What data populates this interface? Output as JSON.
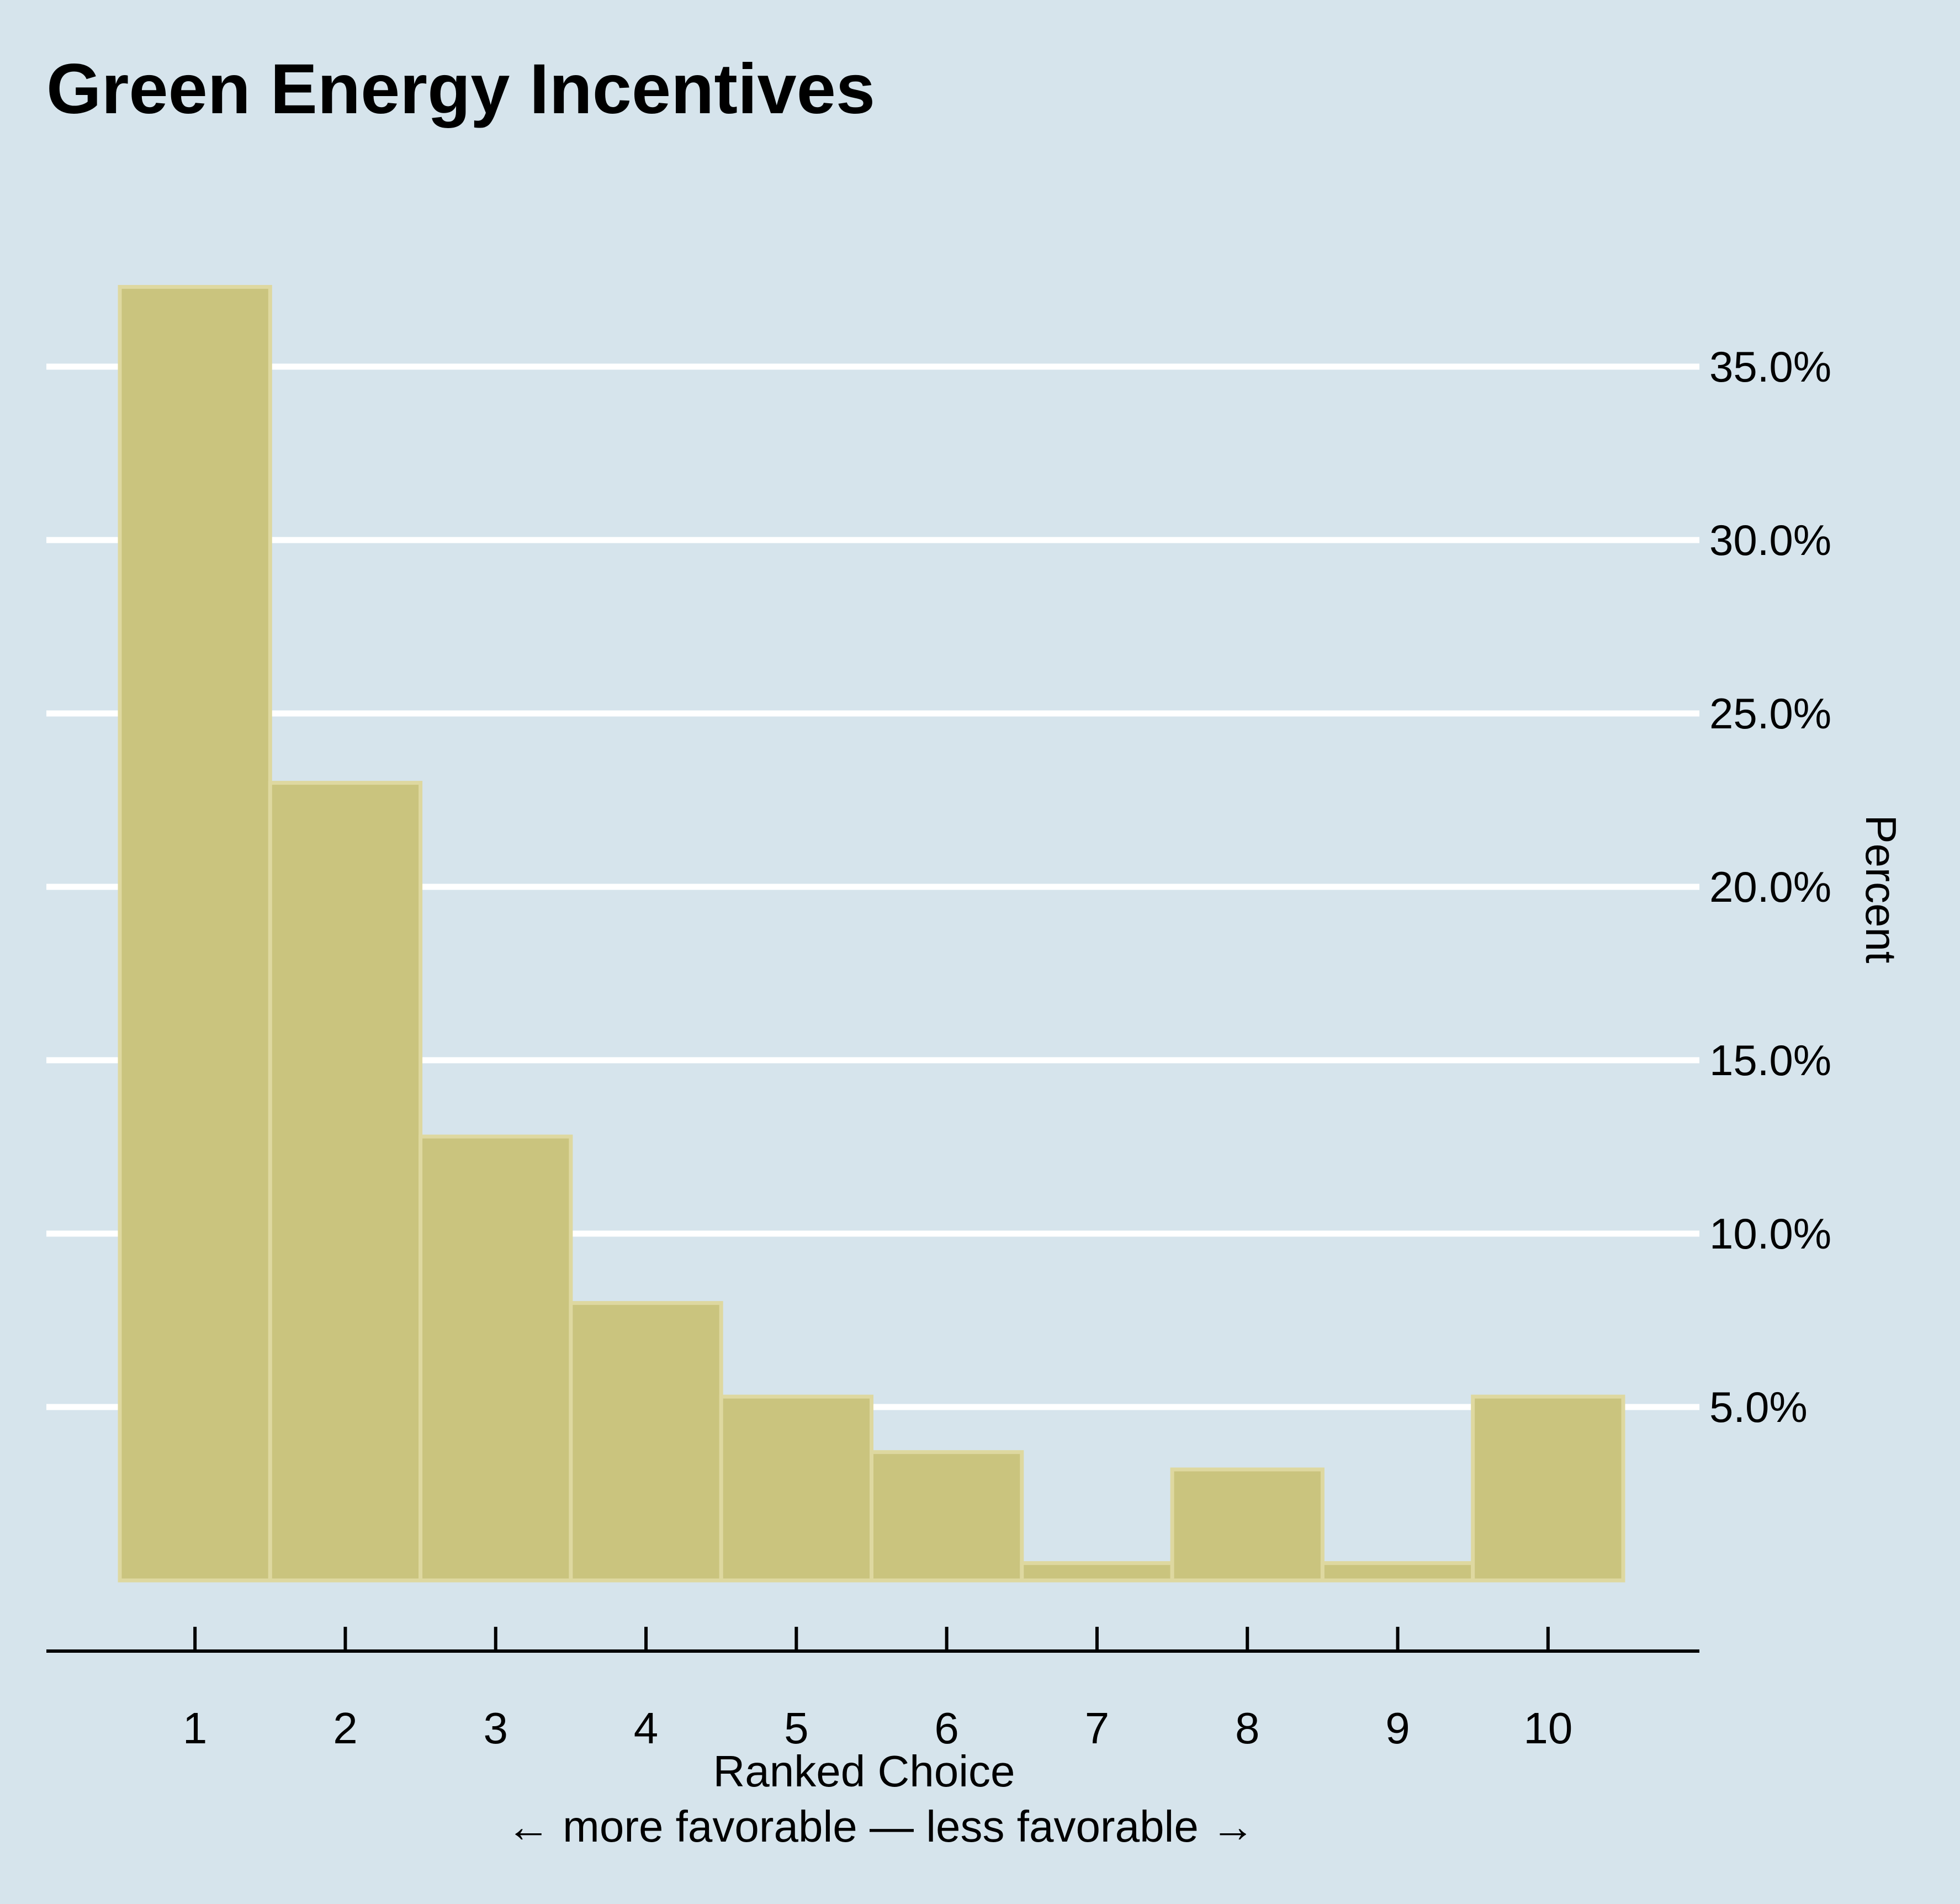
{
  "chart_data": {
    "type": "bar",
    "title": "Green Energy Incentives",
    "xlabel": "Ranked Choice",
    "xlabel_sub": "← more favorable — less favorable →",
    "ylabel": "Percent",
    "categories": [
      "1",
      "2",
      "3",
      "4",
      "5",
      "6",
      "7",
      "8",
      "9",
      "10"
    ],
    "values": [
      37.3,
      23.0,
      12.8,
      8.0,
      5.3,
      3.7,
      0.5,
      3.2,
      0.5,
      5.3
    ],
    "y_ticks": [
      5,
      10,
      15,
      20,
      25,
      30,
      35
    ],
    "y_tick_labels": [
      "5.0%",
      "10.0%",
      "15.0%",
      "20.0%",
      "25.0%",
      "30.0%",
      "35.0%"
    ],
    "ylim": [
      0,
      37.5
    ],
    "y_axis_position": "right",
    "grid": true,
    "legend": "none",
    "colors": {
      "background": "#d6e4ec",
      "bar_fill": "#cac47e",
      "bar_stroke": "#ded8a0",
      "grid": "#ffffff",
      "axis": "#000000",
      "text": "#000000"
    }
  }
}
